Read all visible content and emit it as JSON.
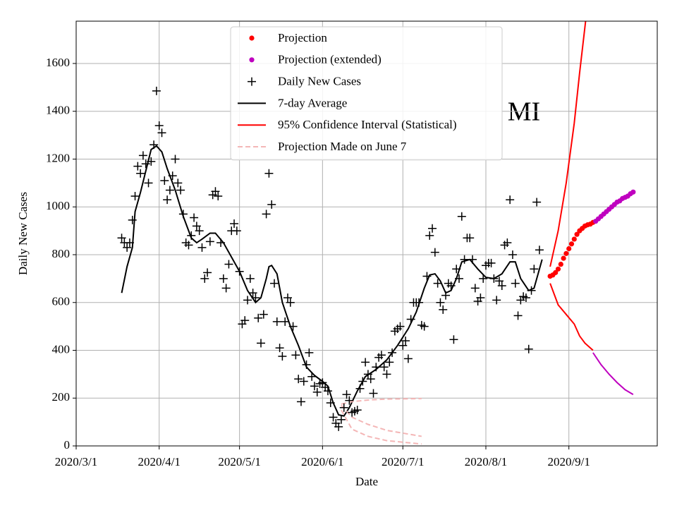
{
  "chart_data": {
    "type": "scatter",
    "annotation": "MI",
    "xlabel": "Date",
    "ylabel": "Daily New Cases",
    "xlim": [
      "2020/3/1",
      "2020/10/4"
    ],
    "ylim": [
      0,
      1777
    ],
    "xticks": [
      "2020/3/1",
      "2020/4/1",
      "2020/5/1",
      "2020/6/1",
      "2020/7/1",
      "2020/8/1",
      "2020/9/1"
    ],
    "yticks": [
      0,
      200,
      400,
      600,
      800,
      1000,
      1200,
      1400,
      1600
    ],
    "grid": true,
    "legend": "upper center",
    "series": [
      {
        "name": "Projection",
        "color": "#ff0000",
        "style": "dot",
        "x": [
          "2020/8/25",
          "2020/8/26",
          "2020/8/27",
          "2020/8/28",
          "2020/8/29",
          "2020/8/30",
          "2020/8/31",
          "2020/9/1",
          "2020/9/2",
          "2020/9/3",
          "2020/9/4",
          "2020/9/5",
          "2020/9/6",
          "2020/9/7",
          "2020/9/8",
          "2020/9/9",
          "2020/9/10"
        ],
        "values": [
          710,
          715,
          725,
          740,
          760,
          785,
          805,
          825,
          845,
          865,
          885,
          900,
          910,
          920,
          925,
          928,
          935
        ]
      },
      {
        "name": "Projection (extended)",
        "color": "#bf00bf",
        "style": "dot",
        "x": [
          "2020/9/11",
          "2020/9/12",
          "2020/9/13",
          "2020/9/14",
          "2020/9/15",
          "2020/9/16",
          "2020/9/17",
          "2020/9/18",
          "2020/9/19",
          "2020/9/20",
          "2020/9/21",
          "2020/9/22",
          "2020/9/23",
          "2020/9/24",
          "2020/9/25"
        ],
        "values": [
          940,
          950,
          960,
          970,
          980,
          990,
          1000,
          1010,
          1020,
          1025,
          1035,
          1040,
          1045,
          1055,
          1062
        ]
      },
      {
        "name": "Daily New Cases",
        "color": "#000000",
        "style": "plus",
        "x": [
          "2020/3/18",
          "2020/3/19",
          "2020/3/20",
          "2020/3/21",
          "2020/3/22",
          "2020/3/23",
          "2020/3/24",
          "2020/3/25",
          "2020/3/26",
          "2020/3/27",
          "2020/3/28",
          "2020/3/29",
          "2020/3/30",
          "2020/3/31",
          "2020/4/1",
          "2020/4/2",
          "2020/4/3",
          "2020/4/4",
          "2020/4/5",
          "2020/4/6",
          "2020/4/7",
          "2020/4/8",
          "2020/4/9",
          "2020/4/10",
          "2020/4/11",
          "2020/4/12",
          "2020/4/13",
          "2020/4/14",
          "2020/4/15",
          "2020/4/16",
          "2020/4/17",
          "2020/4/18",
          "2020/4/19",
          "2020/4/20",
          "2020/4/21",
          "2020/4/22",
          "2020/4/23",
          "2020/4/24",
          "2020/4/25",
          "2020/4/26",
          "2020/4/27",
          "2020/4/28",
          "2020/4/29",
          "2020/4/30",
          "2020/5/1",
          "2020/5/2",
          "2020/5/3",
          "2020/5/4",
          "2020/5/5",
          "2020/5/6",
          "2020/5/7",
          "2020/5/8",
          "2020/5/9",
          "2020/5/10",
          "2020/5/11",
          "2020/5/12",
          "2020/5/13",
          "2020/5/14",
          "2020/5/15",
          "2020/5/16",
          "2020/5/17",
          "2020/5/18",
          "2020/5/19",
          "2020/5/20",
          "2020/5/21",
          "2020/5/22",
          "2020/5/23",
          "2020/5/24",
          "2020/5/25",
          "2020/5/26",
          "2020/5/27",
          "2020/5/28",
          "2020/5/29",
          "2020/5/30",
          "2020/5/31",
          "2020/6/1",
          "2020/6/2",
          "2020/6/3",
          "2020/6/4",
          "2020/6/5",
          "2020/6/6",
          "2020/6/7",
          "2020/6/8",
          "2020/6/9",
          "2020/6/10",
          "2020/6/11",
          "2020/6/12",
          "2020/6/13",
          "2020/6/14",
          "2020/6/15",
          "2020/6/16",
          "2020/6/17",
          "2020/6/18",
          "2020/6/19",
          "2020/6/20",
          "2020/6/21",
          "2020/6/22",
          "2020/6/23",
          "2020/6/24",
          "2020/6/25",
          "2020/6/26",
          "2020/6/27",
          "2020/6/28",
          "2020/6/29",
          "2020/6/30",
          "2020/7/1",
          "2020/7/2",
          "2020/7/3",
          "2020/7/4",
          "2020/7/5",
          "2020/7/6",
          "2020/7/7",
          "2020/7/8",
          "2020/7/9",
          "2020/7/10",
          "2020/7/11",
          "2020/7/12",
          "2020/7/13",
          "2020/7/14",
          "2020/7/15",
          "2020/7/16",
          "2020/7/17",
          "2020/7/18",
          "2020/7/19",
          "2020/7/20",
          "2020/7/21",
          "2020/7/22",
          "2020/7/23",
          "2020/7/24",
          "2020/7/25",
          "2020/7/26",
          "2020/7/27",
          "2020/7/28",
          "2020/7/29",
          "2020/7/30",
          "2020/7/31",
          "2020/8/1",
          "2020/8/2",
          "2020/8/3",
          "2020/8/4",
          "2020/8/5",
          "2020/8/6",
          "2020/8/7",
          "2020/8/8",
          "2020/8/9",
          "2020/8/10",
          "2020/8/11",
          "2020/8/12",
          "2020/8/13",
          "2020/8/14",
          "2020/8/15",
          "2020/8/16",
          "2020/8/17",
          "2020/8/18",
          "2020/8/19",
          "2020/8/20",
          "2020/8/21"
        ],
        "values": [
          870,
          850,
          830,
          850,
          945,
          1045,
          1170,
          1140,
          1215,
          1180,
          1100,
          1190,
          1260,
          1485,
          1340,
          1310,
          1110,
          1030,
          1070,
          1130,
          1200,
          1100,
          1070,
          970,
          850,
          840,
          880,
          955,
          920,
          900,
          830,
          700,
          725,
          855,
          1050,
          1065,
          1045,
          850,
          700,
          660,
          760,
          900,
          930,
          900,
          730,
          510,
          525,
          610,
          700,
          640,
          620,
          535,
          430,
          550,
          970,
          1140,
          1010,
          680,
          520,
          410,
          375,
          520,
          620,
          600,
          500,
          380,
          280,
          185,
          270,
          340,
          390,
          290,
          250,
          225,
          260,
          265,
          245,
          230,
          180,
          120,
          95,
          80,
          110,
          160,
          215,
          190,
          140,
          145,
          150,
          240,
          270,
          350,
          300,
          280,
          220,
          330,
          370,
          380,
          330,
          300,
          350,
          390,
          480,
          490,
          500,
          420,
          440,
          365,
          530,
          600,
          600,
          600,
          505,
          500,
          710,
          880,
          910,
          810,
          680,
          600,
          570,
          630,
          680,
          670,
          445,
          740,
          700,
          960,
          780,
          870,
          870,
          780,
          660,
          605,
          620,
          700,
          755,
          765,
          765,
          700,
          610,
          690,
          670,
          840,
          850,
          1030,
          800,
          680,
          545,
          610,
          625,
          620,
          405,
          650,
          740,
          1020,
          820
        ]
      },
      {
        "name": "7-day Average",
        "color": "#000000",
        "style": "line",
        "x": [
          "2020/3/18",
          "2020/3/20",
          "2020/3/22",
          "2020/3/23",
          "2020/3/25",
          "2020/3/27",
          "2020/3/29",
          "2020/3/31",
          "2020/4/2",
          "2020/4/4",
          "2020/4/7",
          "2020/4/10",
          "2020/4/13",
          "2020/4/15",
          "2020/4/17",
          "2020/4/20",
          "2020/4/22",
          "2020/4/25",
          "2020/4/28",
          "2020/5/1",
          "2020/5/4",
          "2020/5/7",
          "2020/5/9",
          "2020/5/11",
          "2020/5/12",
          "2020/5/13",
          "2020/5/15",
          "2020/5/17",
          "2020/5/20",
          "2020/5/23",
          "2020/5/26",
          "2020/5/29",
          "2020/6/1",
          "2020/6/3",
          "2020/6/5",
          "2020/6/7",
          "2020/6/9",
          "2020/6/11",
          "2020/6/14",
          "2020/6/17",
          "2020/6/21",
          "2020/6/25",
          "2020/6/29",
          "2020/7/3",
          "2020/7/6",
          "2020/7/9",
          "2020/7/11",
          "2020/7/13",
          "2020/7/15",
          "2020/7/17",
          "2020/7/19",
          "2020/7/21",
          "2020/7/23",
          "2020/7/26",
          "2020/7/29",
          "2020/8/1",
          "2020/8/4",
          "2020/8/7",
          "2020/8/10",
          "2020/8/12",
          "2020/8/14",
          "2020/8/17",
          "2020/8/19",
          "2020/8/22"
        ],
        "values": [
          640,
          750,
          830,
          980,
          1060,
          1150,
          1240,
          1255,
          1230,
          1160,
          1070,
          960,
          870,
          850,
          865,
          890,
          890,
          850,
          790,
          730,
          650,
          600,
          620,
          700,
          750,
          755,
          720,
          600,
          500,
          420,
          330,
          295,
          270,
          250,
          180,
          130,
          125,
          160,
          230,
          290,
          320,
          360,
          420,
          490,
          560,
          660,
          715,
          720,
          690,
          640,
          650,
          700,
          770,
          780,
          740,
          705,
          700,
          720,
          770,
          770,
          700,
          650,
          660,
          780
        ]
      },
      {
        "name": "95% Confidence Interval (Statistical)",
        "color": "#ff0000",
        "style": "line",
        "x": [
          "2020/8/25",
          "2020/8/28",
          "2020/8/31",
          "2020/9/3",
          "2020/9/5",
          "2020/9/8"
        ],
        "values": [
          750,
          900,
          1100,
          1350,
          1560,
          1850
        ]
      },
      {
        "name": "Projection Made on June 7",
        "color": "#f4b6b6",
        "style": "dashed",
        "x": [
          "2020/6/8",
          "2020/6/12",
          "2020/6/18",
          "2020/6/25",
          "2020/7/8"
        ],
        "values": [
          175,
          185,
          192,
          196,
          198
        ]
      },
      {
        "color": "#ff0000",
        "style": "line",
        "x": [
          "2020/8/25",
          "2020/8/28",
          "2020/8/31",
          "2020/9/3",
          "2020/9/5",
          "2020/9/7",
          "2020/9/10"
        ],
        "values": [
          680,
          590,
          550,
          510,
          460,
          430,
          400
        ]
      },
      {
        "color": "#bf00bf",
        "style": "line",
        "x": [
          "2020/9/10",
          "2020/9/13",
          "2020/9/16",
          "2020/9/19",
          "2020/9/22",
          "2020/9/25"
        ],
        "values": [
          390,
          340,
          300,
          265,
          235,
          215
        ]
      },
      {
        "color": "#f4b6b6",
        "style": "dashed",
        "x": [
          "2020/6/8",
          "2020/6/12",
          "2020/6/18",
          "2020/6/25",
          "2020/7/8"
        ],
        "values": [
          170,
          120,
          90,
          65,
          40
        ]
      },
      {
        "color": "#f4b6b6",
        "style": "dashed",
        "x": [
          "2020/6/8",
          "2020/6/12",
          "2020/6/18",
          "2020/6/25",
          "2020/7/8"
        ],
        "values": [
          150,
          70,
          40,
          22,
          8
        ]
      }
    ]
  }
}
